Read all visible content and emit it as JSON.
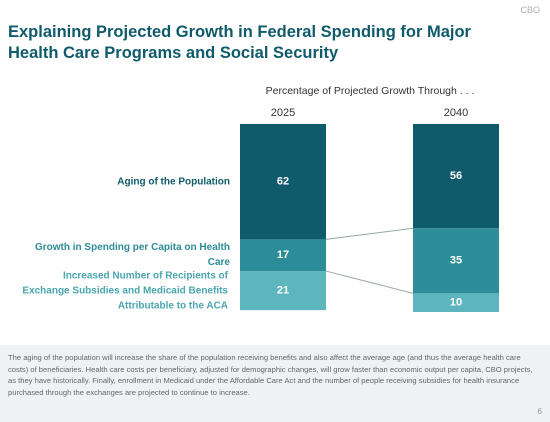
{
  "brand": "CBO",
  "chart_data": {
    "type": "stacked_bar",
    "title": "Explaining Projected Growth in Federal Spending for Major Health Care Programs and Social Security",
    "subtitle": "Percentage of Projected Growth Through . . .",
    "categories": [
      "2025",
      "2040"
    ],
    "series": [
      {
        "name": "Aging of the Population",
        "color": "#0f5b6b",
        "values": [
          62,
          56
        ]
      },
      {
        "name": "Growth in Spending per Capita on Health Care",
        "color": "#2c8c97",
        "values": [
          17,
          35
        ]
      },
      {
        "name": "Increased Number of Recipients of Exchange Subsidies and Medicaid Benefits Attributable to the ACA",
        "color": "#5db6be",
        "values": [
          21,
          10
        ]
      }
    ]
  },
  "footnote": "The aging of the population will increase the share of the population receiving benefits and also affect the average age (and thus the average health care costs) of beneficiaries. Health care costs per beneficiary, adjusted for demographic changes, will grow faster than economic output per capita, CBO projects, as they have historically. Finally, enrollment in Medicaid under the Affordable Care Act and the number of people receiving subsidies for health insurance purchased through the exchanges are projected to continue to increase.",
  "page_number": "6"
}
